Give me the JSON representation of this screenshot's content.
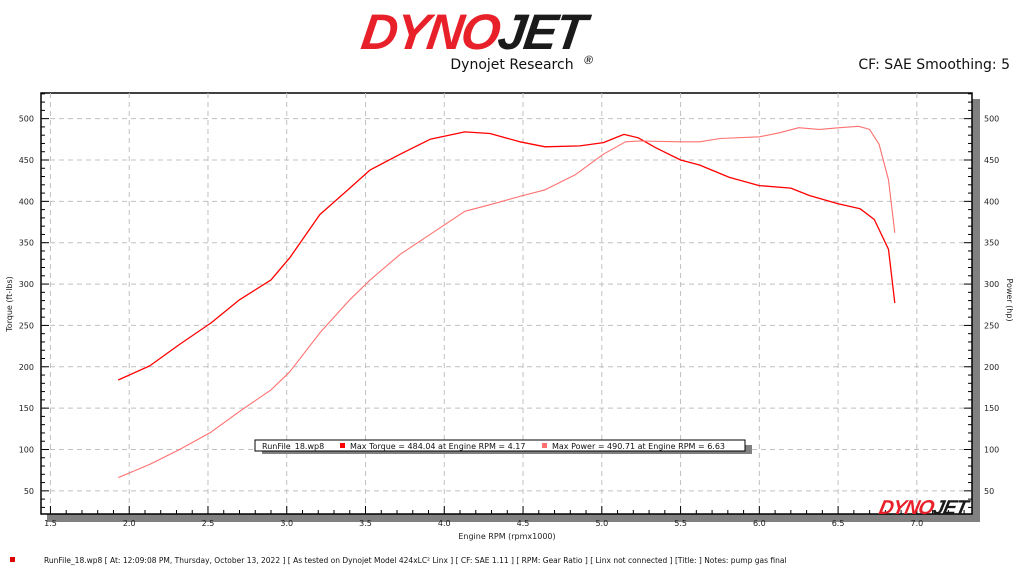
{
  "header": {
    "logo_part1": "DYNO",
    "logo_part2": "JET",
    "logo_reg": "®",
    "subtitle": "Dynojet Research",
    "cf_label": "CF: SAE Smoothing: 5"
  },
  "watermark": {
    "part1": "DYNO",
    "part2": "JET"
  },
  "footer": {
    "text": "RunFile_18.wp8 [ At: 12:09:08 PM, Thursday, October 13, 2022 ] [ As tested on Dynojet Model 424xLC² Linx ] [ CF: SAE 1.11 ] [ RPM: Gear Ratio ] [ Linx not connected ] [Title: ]  Notes: pump gas final",
    "marker_color": "#e00000"
  },
  "chart_data": {
    "type": "line",
    "xlabel": "Engine RPM (rpmx1000)",
    "ylabel_left": "Torque (ft-lbs)",
    "ylabel_right": "Power (hp)",
    "xlim": [
      1.44,
      7.35
    ],
    "ylim": [
      22,
      531
    ],
    "x_ticks": [
      "1.5",
      "2.0",
      "2.5",
      "3.0",
      "3.5",
      "4.0",
      "4.5",
      "5.0",
      "5.5",
      "6.0",
      "6.5",
      "7.0"
    ],
    "y_ticks": [
      "50",
      "100",
      "150",
      "200",
      "250",
      "300",
      "350",
      "400",
      "450",
      "500"
    ],
    "grid": true,
    "legend": {
      "placement": "bottom-center",
      "file": "RunFile_18.wp8",
      "torque_text": "Max Torque = 484.04 at Engine RPM = 4.17",
      "power_text": "Max Power = 490.71 at Engine RPM = 6.63"
    },
    "series": [
      {
        "name": "Torque",
        "color": "#ff0000",
        "x": [
          1.93,
          2.13,
          2.32,
          2.52,
          2.7,
          2.9,
          3.02,
          3.21,
          3.4,
          3.53,
          3.72,
          3.91,
          4.13,
          4.29,
          4.48,
          4.64,
          4.86,
          5.01,
          5.14,
          5.23,
          5.34,
          5.5,
          5.62,
          5.81,
          6.0,
          6.2,
          6.32,
          6.5,
          6.64,
          6.73,
          6.82,
          6.86
        ],
        "y": [
          184,
          201,
          227,
          253,
          281,
          305,
          332,
          384,
          416,
          438,
          457,
          475,
          484,
          482,
          472,
          466,
          467,
          471,
          481,
          477,
          465,
          450,
          444,
          429,
          419,
          416,
          407,
          397,
          391,
          378,
          342,
          277
        ]
      },
      {
        "name": "Power",
        "color": "#ff7070",
        "x": [
          1.93,
          2.13,
          2.32,
          2.52,
          2.7,
          2.9,
          3.02,
          3.21,
          3.4,
          3.53,
          3.72,
          3.91,
          4.13,
          4.29,
          4.48,
          4.64,
          4.83,
          5.01,
          5.15,
          5.24,
          5.5,
          5.62,
          5.75,
          6.0,
          6.13,
          6.25,
          6.38,
          6.51,
          6.63,
          6.7,
          6.76,
          6.82,
          6.86
        ],
        "y": [
          66,
          82,
          100,
          121,
          146,
          172,
          194,
          241,
          281,
          305,
          336,
          360,
          388,
          396,
          406,
          414,
          432,
          457,
          472,
          473,
          472,
          472,
          476,
          478,
          483,
          489,
          487,
          489,
          490.7,
          487,
          469,
          426,
          362
        ]
      }
    ]
  }
}
